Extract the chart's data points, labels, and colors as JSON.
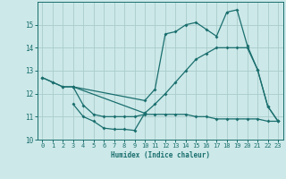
{
  "title": "",
  "xlabel": "Humidex (Indice chaleur)",
  "background_color": "#cce8e8",
  "grid_color": "#aacccc",
  "line_color": "#1a6e6e",
  "xlim": [
    -0.5,
    23.5
  ],
  "ylim": [
    10,
    16
  ],
  "yticks": [
    10,
    11,
    12,
    13,
    14,
    15
  ],
  "xticks": [
    0,
    1,
    2,
    3,
    4,
    5,
    6,
    7,
    8,
    9,
    10,
    11,
    12,
    13,
    14,
    15,
    16,
    17,
    18,
    19,
    20,
    21,
    22,
    23
  ],
  "line1_x": [
    0,
    1,
    2,
    3,
    10,
    11,
    12,
    13,
    14,
    15,
    16,
    17,
    18,
    19,
    20,
    21,
    22,
    23
  ],
  "line1_y": [
    12.7,
    12.5,
    12.3,
    12.3,
    11.7,
    12.2,
    14.6,
    14.7,
    15.0,
    15.1,
    14.8,
    14.5,
    15.55,
    15.65,
    14.1,
    13.05,
    11.45,
    10.8
  ],
  "line2_x": [
    0,
    1,
    2,
    3,
    10,
    11,
    12,
    13,
    14,
    15,
    16,
    17,
    18,
    19,
    20,
    21,
    22,
    23
  ],
  "line2_y": [
    12.7,
    12.5,
    12.3,
    12.3,
    11.15,
    11.55,
    12.0,
    12.5,
    13.0,
    13.5,
    13.75,
    14.0,
    14.0,
    14.0,
    14.0,
    13.05,
    11.45,
    10.8
  ],
  "line3_x": [
    3,
    4,
    5,
    6,
    7,
    8,
    9,
    10
  ],
  "line3_y": [
    11.55,
    11.0,
    10.8,
    10.5,
    10.45,
    10.45,
    10.4,
    11.15
  ],
  "line4_x": [
    3,
    4,
    5,
    6,
    7,
    8,
    9,
    10,
    11,
    12,
    13,
    14,
    15,
    16,
    17,
    18,
    19,
    20,
    21,
    22,
    23
  ],
  "line4_y": [
    12.3,
    11.5,
    11.1,
    11.0,
    11.0,
    11.0,
    11.0,
    11.1,
    11.1,
    11.1,
    11.1,
    11.1,
    11.0,
    11.0,
    10.9,
    10.9,
    10.9,
    10.9,
    10.9,
    10.8,
    10.8
  ]
}
